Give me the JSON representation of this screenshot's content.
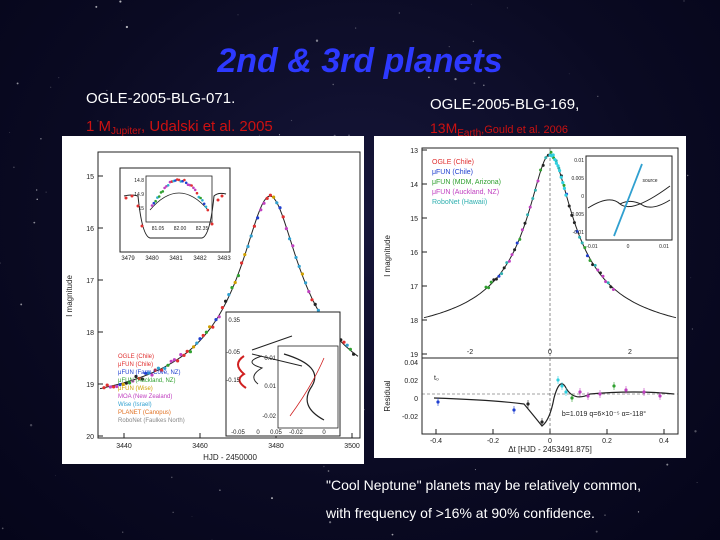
{
  "slide": {
    "title": "2nd & 3rd planets",
    "left_heading": "OGLE-2005-BLG-071.",
    "left_sub_prefix": "1 M",
    "left_sub_subscript": "Jupiter",
    "left_sub_suffix": ", Udalski et al. 2005",
    "right_heading": "OGLE-2005-BLG-169,",
    "right_sub_prefix": "13M",
    "right_sub_subscript": "Earth",
    "right_sub_suffix": ",Gould et al. 2006",
    "caption_line1": "\"Cool Neptune\" planets may be relatively common,",
    "caption_line2": "with frequency of >16% at 90% confidence."
  },
  "left_figure": {
    "ylabel": "I magnitude",
    "xlabel": "HJD - 2450000",
    "y_ticks": [
      "15",
      "16",
      "17",
      "18",
      "19",
      "20"
    ],
    "x_ticks": [
      "3440",
      "3460",
      "3480",
      "3500"
    ],
    "inset_x_ticks": [
      "3479",
      "3480",
      "3481",
      "3482",
      "3483"
    ],
    "inset_y_ticks": [
      "14.8",
      "14.9",
      "15"
    ],
    "inset_inner_ticks": [
      "81.05",
      "82.00",
      "82.35"
    ],
    "caustic_ticks_y": [
      "0.35",
      "-0.05",
      "-0.15",
      "0.01",
      "0.01",
      "-0.02"
    ],
    "caustic_ticks_x": [
      "-0.05",
      "0",
      "0.05",
      "-0.02",
      "0"
    ],
    "legend": [
      {
        "text": "OGLE (Chile)",
        "color": "#e03030"
      },
      {
        "text": "μFUN (Chile)",
        "color": "#e03030"
      },
      {
        "text": "μFUN (Farm Cove, NZ)",
        "color": "#2040d0"
      },
      {
        "text": "μFUN (Auckland, NZ)",
        "color": "#30a030"
      },
      {
        "text": "μFUN (Wise)",
        "color": "#d0a000"
      },
      {
        "text": "MOA (New Zealand)",
        "color": "#c040c0"
      },
      {
        "text": "Wise (Israel)",
        "color": "#30a0d0"
      },
      {
        "text": "PLANET (Canopus)",
        "color": "#e07020"
      },
      {
        "text": "RoboNet (Faulkes North)",
        "color": "#888888"
      }
    ]
  },
  "right_figure": {
    "ylabel": "I magnitude",
    "residual_label": "Residual",
    "xlabel": "Δt [HJD - 2453491.875]",
    "y_ticks": [
      "13",
      "14",
      "15",
      "16",
      "17",
      "18",
      "19"
    ],
    "x_ticks": [
      "-2",
      "0",
      "2"
    ],
    "res_y_ticks": [
      "0.04",
      "0.02",
      "0",
      "-0.02"
    ],
    "res_x_ticks": [
      "-0.4",
      "-0.2",
      "0",
      "0.2",
      "0.4"
    ],
    "inset_ticks_y": [
      "0.01",
      "0.005",
      "0",
      "-0.005",
      "-0.01"
    ],
    "inset_ticks_x": [
      "-0.01",
      "0",
      "0.01"
    ],
    "inset_source_label": "source",
    "t_label": "t₀",
    "params": "b=1.019  q=6×10⁻⁵  α=-118°",
    "legend": [
      {
        "text": "OGLE (Chile)",
        "color": "#e03030"
      },
      {
        "text": "μFUN (Chile)",
        "color": "#2040d0"
      },
      {
        "text": "μFUN (MDM, Arizona)",
        "color": "#30a030"
      },
      {
        "text": "μFUN (Auckland, NZ)",
        "color": "#c040c0"
      },
      {
        "text": "RoboNet (Hawaii)",
        "color": "#30b0b0"
      }
    ]
  }
}
